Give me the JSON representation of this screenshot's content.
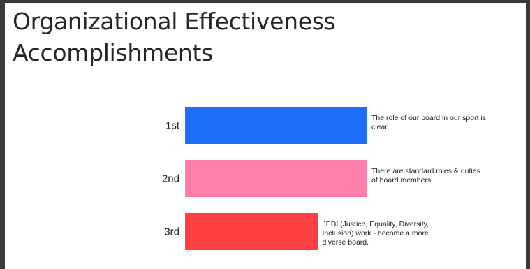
{
  "title_lines": [
    "Organizational Effectiveness",
    "Accomplishments"
  ],
  "chart_data": {
    "type": "bar",
    "orientation": "horizontal",
    "categories": [
      "1st",
      "2nd",
      "3rd"
    ],
    "values": [
      1.0,
      1.0,
      0.73
    ],
    "descriptions": [
      [
        "The role of our board in our sport is",
        "clear."
      ],
      [
        "There are standard roles & duties",
        "of board members."
      ],
      [
        "JEDI (Justice, Equality, Diversity,",
        "Inclusion) work - become a more",
        "diverse board."
      ]
    ],
    "colors": [
      "#1e6ff8",
      "#fe7fa8",
      "#ff4040"
    ],
    "title": "",
    "xlabel": "",
    "ylabel": "",
    "grid": false,
    "legend": "none"
  }
}
